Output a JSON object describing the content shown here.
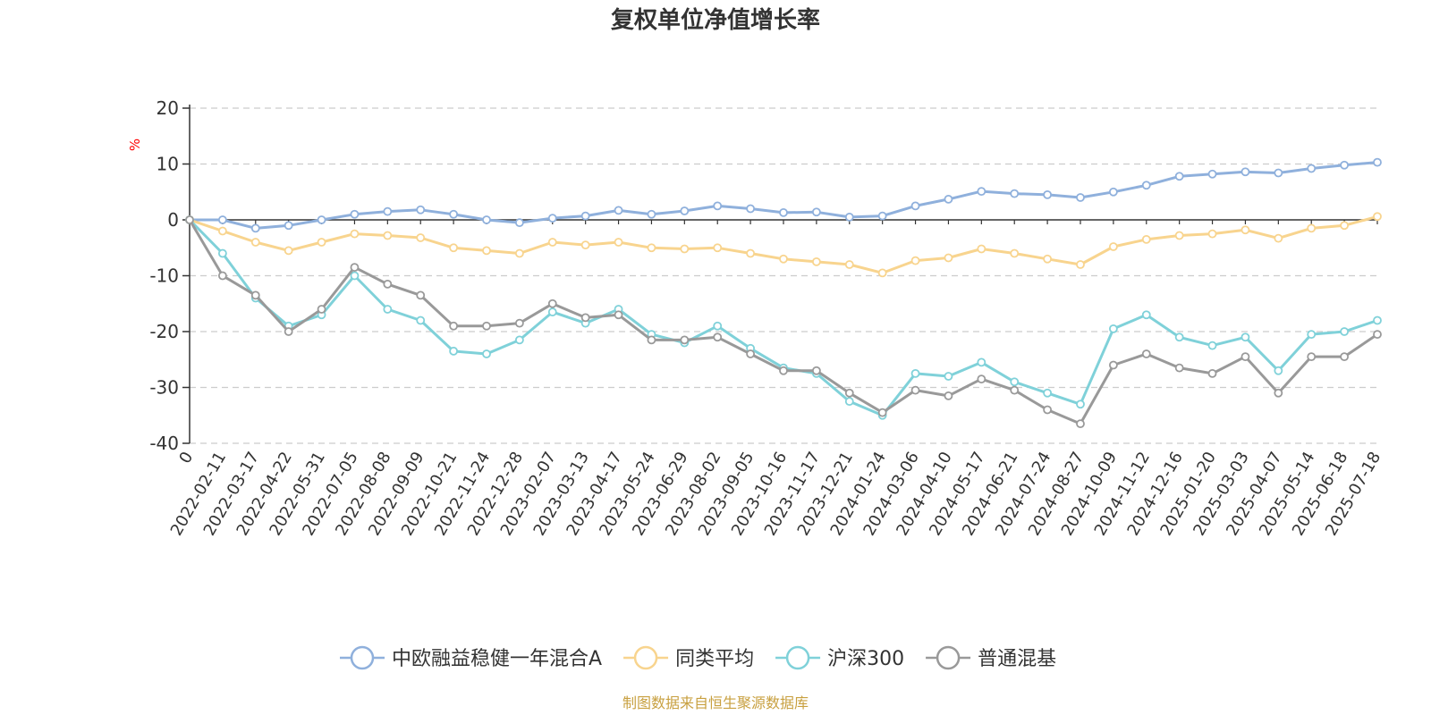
{
  "chart_data": {
    "type": "line",
    "title": "复权单位净值增长率",
    "ylabel": "%",
    "ylim": [
      -40,
      20
    ],
    "yticks": [
      20,
      10,
      0,
      -10,
      -20,
      -30,
      -40
    ],
    "grid": true,
    "legend_position": "bottom",
    "x_tick_labels": [
      "0",
      "2022-02-11",
      "2022-03-17",
      "2022-04-22",
      "2022-05-31",
      "2022-07-05",
      "2022-08-08",
      "2022-09-09",
      "2022-10-21",
      "2022-11-24",
      "2022-12-28",
      "2023-02-07",
      "2023-03-13",
      "2023-04-17",
      "2023-05-24",
      "2023-06-29",
      "2023-08-02",
      "2023-09-05",
      "2023-10-16",
      "2023-11-17",
      "2023-12-21",
      "2024-01-24",
      "2024-03-06",
      "2024-04-10",
      "2024-05-17",
      "2024-06-21",
      "2024-07-24",
      "2024-08-27",
      "2024-10-09",
      "2024-11-12",
      "2024-12-16",
      "2025-01-20",
      "2025-03-03",
      "2025-04-07",
      "2025-05-14",
      "2025-06-18",
      "2025-07-18"
    ],
    "series": [
      {
        "name": "中欧融益稳健一年混合A",
        "color": "#8fb0dc",
        "values": [
          0,
          0,
          -1.5,
          -1,
          0,
          1,
          1.5,
          1.8,
          1,
          0,
          -0.5,
          0.3,
          0.7,
          1.7,
          1,
          1.6,
          2.5,
          2,
          1.3,
          1.4,
          0.5,
          0.7,
          2.5,
          3.7,
          5.1,
          4.7,
          4.5,
          4,
          5,
          6.2,
          7.8,
          8.2,
          8.6,
          8.4,
          9.2,
          9.8,
          10.3
        ]
      },
      {
        "name": "同类平均",
        "color": "#f8d48e",
        "values": [
          0,
          -2,
          -4,
          -5.5,
          -4,
          -2.5,
          -2.8,
          -3.2,
          -5,
          -5.5,
          -6,
          -4,
          -4.5,
          -4,
          -5,
          -5.2,
          -5,
          -6,
          -7,
          -7.5,
          -8,
          -9.5,
          -7.3,
          -6.8,
          -5.2,
          -6,
          -7,
          -8,
          -4.8,
          -3.5,
          -2.8,
          -2.5,
          -1.8,
          -3.3,
          -1.5,
          -1,
          0.6
        ]
      },
      {
        "name": "沪深300",
        "color": "#7fd1d9",
        "values": [
          0,
          -6,
          -14,
          -19,
          -17,
          -10,
          -16,
          -18,
          -23.5,
          -24,
          -21.5,
          -16.5,
          -18.5,
          -16,
          -20.5,
          -22,
          -19,
          -23,
          -26.5,
          -27.5,
          -32.5,
          -35,
          -27.5,
          -28,
          -25.5,
          -29,
          -31,
          -33,
          -19.5,
          -17,
          -21,
          -22.5,
          -21,
          -27,
          -20.5,
          -20,
          -18
        ]
      },
      {
        "name": "普通混基",
        "color": "#999999",
        "values": [
          0,
          -10,
          -13.5,
          -20,
          -16,
          -8.5,
          -11.5,
          -13.5,
          -19,
          -19,
          -18.5,
          -15,
          -17.5,
          -17,
          -21.5,
          -21.5,
          -21,
          -24,
          -27,
          -27,
          -31,
          -34.5,
          -30.5,
          -31.5,
          -28.5,
          -30.5,
          -34,
          -36.5,
          -26,
          -24,
          -26.5,
          -27.5,
          -24.5,
          -31,
          -24.5,
          -24.5,
          -20.5
        ]
      }
    ]
  },
  "source": {
    "text": "制图数据来自恒生聚源数据库",
    "color": "#c8a040"
  },
  "unit_color": "#ff0000"
}
